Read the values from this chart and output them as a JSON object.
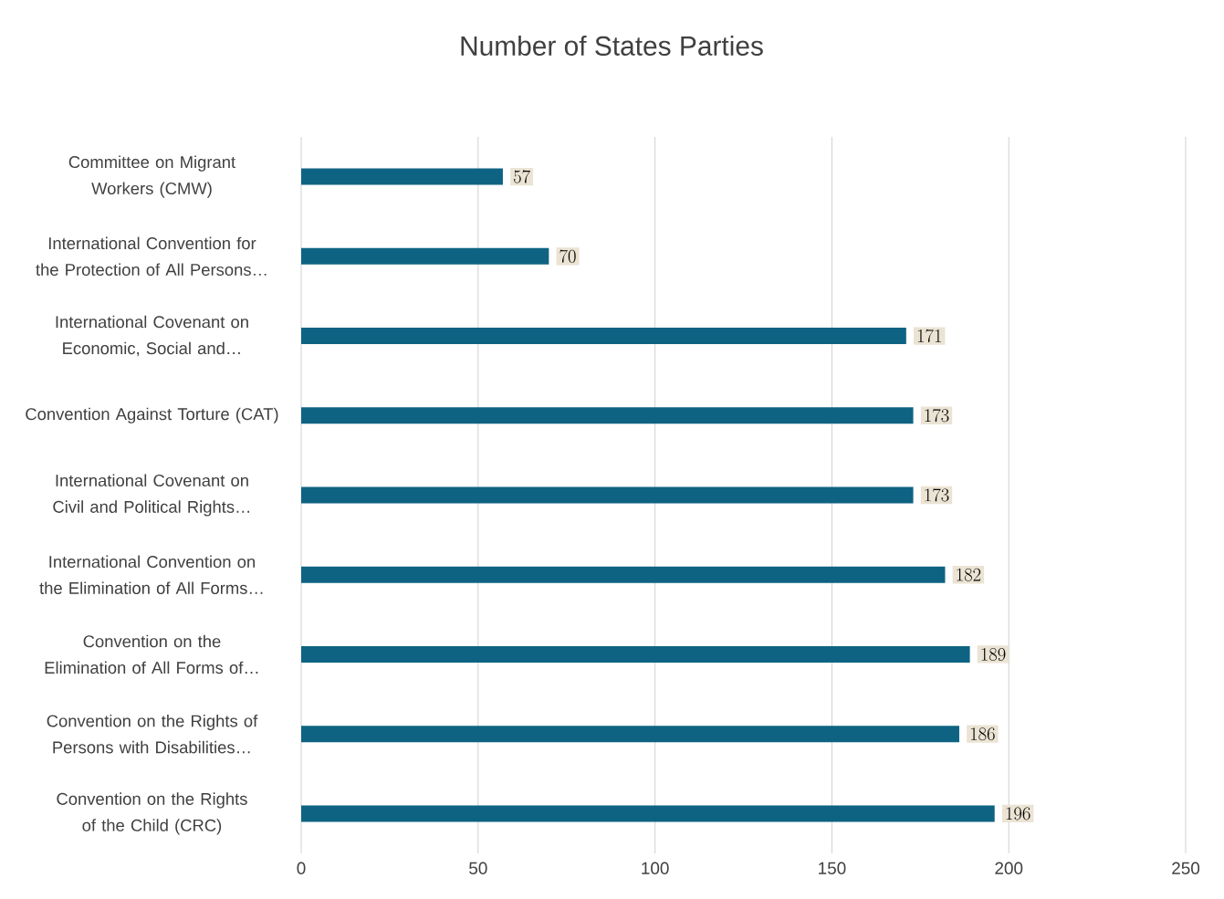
{
  "chart_data": {
    "type": "bar",
    "orientation": "horizontal",
    "title": "Number of States Parties",
    "categories": [
      "Committee on Migrant Workers (CMW)",
      "International Convention for the Protection of All Persons…",
      "International Covenant on Economic, Social and…",
      "Convention Against Torture (CAT)",
      "International Covenant on Civil and Political Rights…",
      "International Convention on the Elimination of All Forms…",
      "Convention on the Elimination of All Forms of…",
      "Convention on the Rights of Persons with Disabilities…",
      "Convention on the Rights of the Child (CRC)"
    ],
    "values": [
      57,
      70,
      171,
      173,
      173,
      182,
      189,
      186,
      196
    ],
    "color": "#0e6382",
    "xlim": [
      0,
      250
    ],
    "xticks": [
      0,
      50,
      100,
      150,
      200,
      250
    ],
    "grid": "x",
    "data_labels": true
  }
}
